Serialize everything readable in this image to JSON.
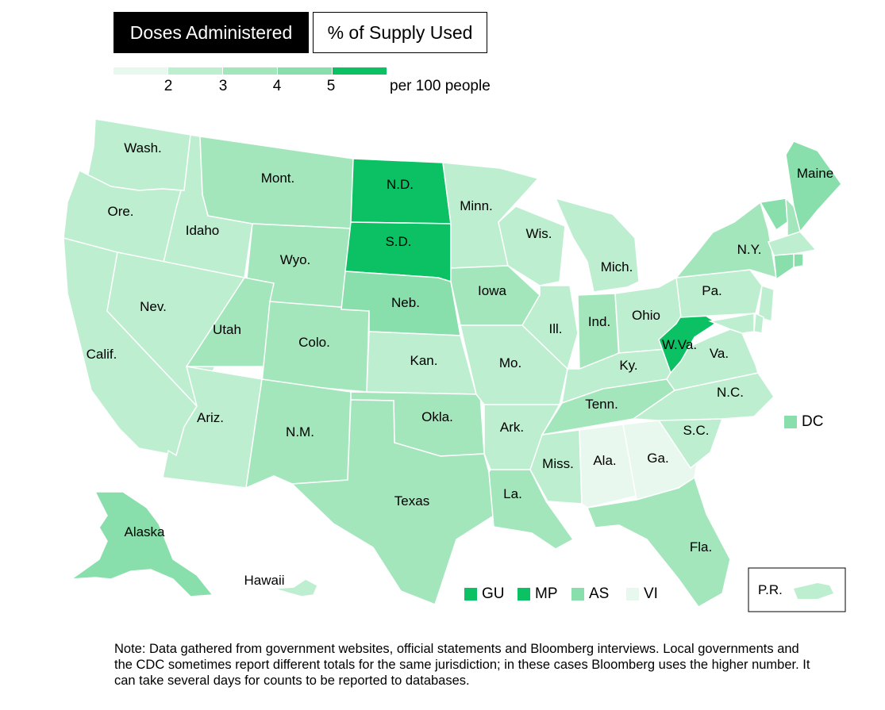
{
  "tabs": {
    "active_label": "Doses Administered",
    "inactive_label": "% of Supply Used"
  },
  "legend": {
    "colors": [
      "#e9f8ee",
      "#bdeed0",
      "#a3e6bc",
      "#88dfab",
      "#0cc163"
    ],
    "ticks": [
      "2",
      "3",
      "4",
      "5"
    ],
    "unit": "per 100 people"
  },
  "map_data": {
    "states": [
      {
        "id": "wa",
        "label": "Wash.",
        "bin": 1
      },
      {
        "id": "or",
        "label": "Ore.",
        "bin": 1
      },
      {
        "id": "ca",
        "label": "Calif.",
        "bin": 1
      },
      {
        "id": "id",
        "label": "Idaho",
        "bin": 1
      },
      {
        "id": "nv",
        "label": "Nev.",
        "bin": 1
      },
      {
        "id": "mt",
        "label": "Mont.",
        "bin": 2
      },
      {
        "id": "wy",
        "label": "Wyo.",
        "bin": 2
      },
      {
        "id": "ut",
        "label": "Utah",
        "bin": 2
      },
      {
        "id": "co",
        "label": "Colo.",
        "bin": 2
      },
      {
        "id": "az",
        "label": "Ariz.",
        "bin": 1
      },
      {
        "id": "nm",
        "label": "N.M.",
        "bin": 2
      },
      {
        "id": "nd",
        "label": "N.D.",
        "bin": 4
      },
      {
        "id": "sd",
        "label": "S.D.",
        "bin": 4
      },
      {
        "id": "ne",
        "label": "Neb.",
        "bin": 3
      },
      {
        "id": "ks",
        "label": "Kan.",
        "bin": 1
      },
      {
        "id": "ok",
        "label": "Okla.",
        "bin": 2
      },
      {
        "id": "tx",
        "label": "Texas",
        "bin": 2
      },
      {
        "id": "mn",
        "label": "Minn.",
        "bin": 1
      },
      {
        "id": "ia",
        "label": "Iowa",
        "bin": 2
      },
      {
        "id": "mo",
        "label": "Mo.",
        "bin": 1
      },
      {
        "id": "ar",
        "label": "Ark.",
        "bin": 1
      },
      {
        "id": "la",
        "label": "La.",
        "bin": 2
      },
      {
        "id": "wi",
        "label": "Wis.",
        "bin": 1
      },
      {
        "id": "il",
        "label": "Ill.",
        "bin": 1
      },
      {
        "id": "mi",
        "label": "Mich.",
        "bin": 1
      },
      {
        "id": "in",
        "label": "Ind.",
        "bin": 2
      },
      {
        "id": "oh",
        "label": "Ohio",
        "bin": 1
      },
      {
        "id": "ky",
        "label": "Ky.",
        "bin": 1
      },
      {
        "id": "tn",
        "label": "Tenn.",
        "bin": 2
      },
      {
        "id": "ms",
        "label": "Miss.",
        "bin": 1
      },
      {
        "id": "al",
        "label": "Ala.",
        "bin": 0
      },
      {
        "id": "ga",
        "label": "Ga.",
        "bin": 0
      },
      {
        "id": "fl",
        "label": "Fla.",
        "bin": 2
      },
      {
        "id": "sc",
        "label": "S.C.",
        "bin": 1
      },
      {
        "id": "nc",
        "label": "N.C.",
        "bin": 1
      },
      {
        "id": "va",
        "label": "Va.",
        "bin": 1
      },
      {
        "id": "wv",
        "label": "W.Va.",
        "bin": 4
      },
      {
        "id": "pa",
        "label": "Pa.",
        "bin": 1
      },
      {
        "id": "ny",
        "label": "N.Y.",
        "bin": 2
      },
      {
        "id": "me",
        "label": "Maine",
        "bin": 3
      },
      {
        "id": "vt",
        "label": "",
        "bin": 3
      },
      {
        "id": "nh",
        "label": "",
        "bin": 2
      },
      {
        "id": "ma",
        "label": "",
        "bin": 1
      },
      {
        "id": "ri",
        "label": "",
        "bin": 3
      },
      {
        "id": "ct",
        "label": "",
        "bin": 3
      },
      {
        "id": "nj",
        "label": "",
        "bin": 1
      },
      {
        "id": "de",
        "label": "",
        "bin": 1
      },
      {
        "id": "md",
        "label": "",
        "bin": 1
      },
      {
        "id": "ak",
        "label": "Alaska",
        "bin": 3
      },
      {
        "id": "hi",
        "label": "Hawaii",
        "bin": 1
      }
    ],
    "territories": [
      {
        "label": "DC",
        "bin": 3
      },
      {
        "label": "GU",
        "bin": 4
      },
      {
        "label": "MP",
        "bin": 4
      },
      {
        "label": "AS",
        "bin": 3
      },
      {
        "label": "VI",
        "bin": 0
      }
    ],
    "pr": {
      "label": "P.R.",
      "bin": 1
    }
  },
  "note": "Note: Data gathered from government websites, official statements and Bloomberg interviews. Local governments and the CDC sometimes report different totals for the same jurisdiction; in these cases Bloomberg uses the higher number. It can take several days for counts to be reported to databases."
}
